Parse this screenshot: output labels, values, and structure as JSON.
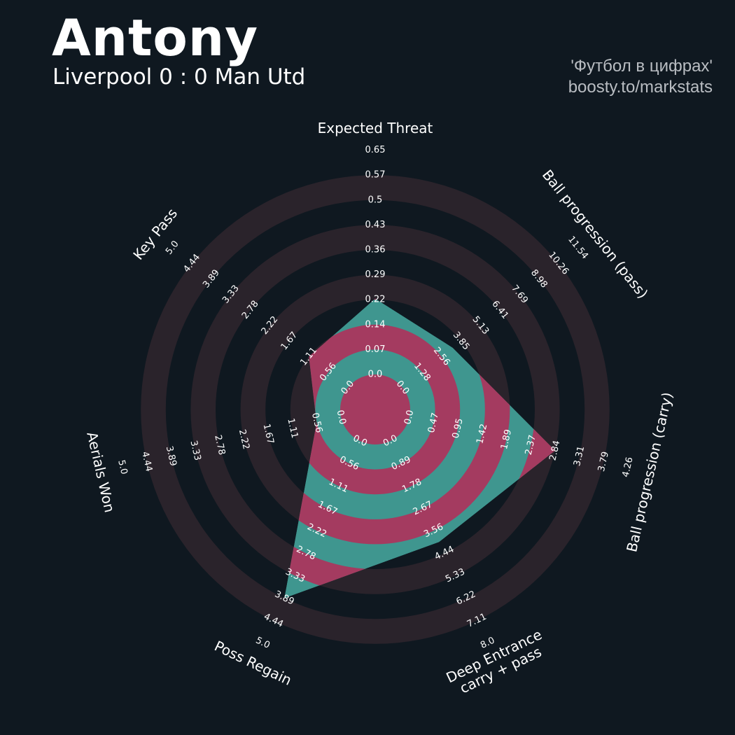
{
  "header": {
    "title": "Antony",
    "subtitle": "Liverpool 0 : 0 Man Utd",
    "credit_line1": "'Футбол в цифрах'",
    "credit_line2": "boosty.to/markstats"
  },
  "colors": {
    "background": "#0f1820",
    "ring_band": "#2a232b",
    "player_fill_a": "#a43b60",
    "player_fill_b": "#3f968f",
    "label_text": "#ffffff"
  },
  "chart_data": {
    "type": "radar",
    "player": "Antony",
    "params": [
      {
        "label": [
          "Expected Threat"
        ],
        "ticks": [
          "0.0",
          "0.07",
          "0.14",
          "0.22",
          "0.29",
          "0.36",
          "0.43",
          "0.5",
          "0.57",
          "0.65"
        ],
        "min": 0.0,
        "max": 0.65,
        "value": 0.22
      },
      {
        "label": [
          "Ball progression (pass)"
        ],
        "ticks": [
          "0.0",
          "1.28",
          "2.56",
          "3.85",
          "5.13",
          "6.41",
          "7.69",
          "8.98",
          "10.26",
          "11.54"
        ],
        "min": 0.0,
        "max": 11.54,
        "value": 3.3
      },
      {
        "label": [
          "Ball progression (carry)"
        ],
        "ticks": [
          "0.0",
          "0.47",
          "0.95",
          "1.42",
          "1.89",
          "2.37",
          "2.84",
          "3.31",
          "3.79",
          "4.26"
        ],
        "min": 0.0,
        "max": 4.26,
        "value": 2.84
      },
      {
        "label": [
          "Deep Entrance",
          "carry + pass"
        ],
        "ticks": [
          "0.0",
          "0.89",
          "1.78",
          "2.67",
          "3.56",
          "4.44",
          "5.33",
          "6.22",
          "7.11",
          "8.0"
        ],
        "min": 0.0,
        "max": 8.0,
        "value": 4.0
      },
      {
        "label": [
          "Poss Regain"
        ],
        "ticks": [
          "0.0",
          "0.56",
          "1.11",
          "1.67",
          "2.22",
          "2.78",
          "3.33",
          "3.89",
          "4.44",
          "5.0"
        ],
        "min": 0.0,
        "max": 5.0,
        "value": 3.89
      },
      {
        "label": [
          "Aerials Won"
        ],
        "ticks": [
          "0.0",
          "0.56",
          "1.11",
          "1.67",
          "2.22",
          "2.78",
          "3.33",
          "3.89",
          "4.44",
          "5.0"
        ],
        "min": 0.0,
        "max": 5.0,
        "value": 0.56
      },
      {
        "label": [
          "Key Pass"
        ],
        "ticks": [
          "0.0",
          "0.56",
          "1.11",
          "1.67",
          "2.22",
          "2.78",
          "3.33",
          "3.89",
          "4.44",
          "5.0"
        ],
        "min": 0.0,
        "max": 5.0,
        "value": 1.11
      }
    ]
  }
}
